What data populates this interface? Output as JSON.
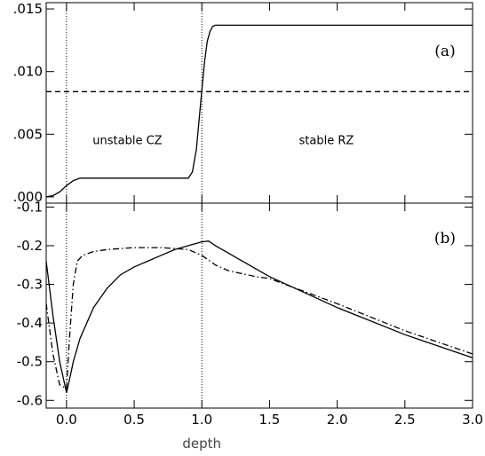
{
  "chart_data": [
    {
      "panel": "(a)",
      "type": "line",
      "xlim": [
        -0.15,
        3.0
      ],
      "ylim": [
        -0.0005,
        0.0155
      ],
      "yticks": [
        0.0,
        0.005,
        0.01,
        0.015
      ],
      "ytick_labels": [
        ".000",
        ".005",
        ".010",
        ".015"
      ],
      "xticks": [
        0.0,
        0.5,
        1.0,
        1.5,
        2.0,
        2.5,
        3.0
      ],
      "annotations": [
        "unstable CZ",
        "stable RZ"
      ],
      "vlines": [
        0.0,
        1.0
      ],
      "series": [
        {
          "style": "solid",
          "x": [
            -0.15,
            -0.1,
            -0.05,
            0.0,
            0.05,
            0.1,
            0.2,
            0.4,
            0.6,
            0.8,
            0.9,
            0.93,
            0.96,
            0.98,
            1.0,
            1.02,
            1.04,
            1.06,
            1.08,
            1.1,
            1.5,
            2.0,
            2.5,
            3.0
          ],
          "y": [
            0.0,
            0.0001,
            0.0004,
            0.0009,
            0.0013,
            0.0015,
            0.0015,
            0.0015,
            0.0015,
            0.0015,
            0.0015,
            0.002,
            0.0038,
            0.0062,
            0.0085,
            0.0108,
            0.0124,
            0.0132,
            0.0136,
            0.0137,
            0.0137,
            0.0137,
            0.0137,
            0.0137
          ]
        },
        {
          "style": "dashed",
          "x": [
            -0.15,
            3.0
          ],
          "y": [
            0.0084,
            0.0084
          ]
        }
      ]
    },
    {
      "panel": "(b)",
      "type": "line",
      "xlim": [
        -0.15,
        3.0
      ],
      "ylim": [
        -0.62,
        -0.09
      ],
      "yticks": [
        -0.6,
        -0.5,
        -0.4,
        -0.3,
        -0.2,
        -0.1
      ],
      "ytick_labels": [
        "-0.6",
        "-0.5",
        "-0.4",
        "-0.3",
        "-0.2",
        "-0.1"
      ],
      "xticks": [
        0.0,
        0.5,
        1.0,
        1.5,
        2.0,
        2.5,
        3.0
      ],
      "xtick_labels": [
        "0.0",
        "0.5",
        "1.0",
        "1.5",
        "2.0",
        "2.5",
        "3.0"
      ],
      "xlabel": "depth",
      "vlines": [
        0.0,
        1.0
      ],
      "series": [
        {
          "style": "solid",
          "x": [
            -0.15,
            -0.1,
            -0.05,
            0.0,
            0.02,
            0.05,
            0.1,
            0.2,
            0.3,
            0.4,
            0.5,
            0.6,
            0.7,
            0.8,
            0.9,
            1.0,
            1.05,
            1.1,
            1.3,
            1.5,
            2.0,
            2.5,
            3.0
          ],
          "y": [
            -0.24,
            -0.38,
            -0.5,
            -0.58,
            -0.55,
            -0.5,
            -0.44,
            -0.36,
            -0.31,
            -0.275,
            -0.255,
            -0.24,
            -0.225,
            -0.21,
            -0.2,
            -0.19,
            -0.188,
            -0.2,
            -0.24,
            -0.28,
            -0.36,
            -0.43,
            -0.49
          ]
        },
        {
          "style": "dash-dot",
          "x": [
            -0.15,
            -0.1,
            -0.05,
            0.0,
            0.02,
            0.05,
            0.08,
            0.12,
            0.2,
            0.3,
            0.5,
            0.7,
            0.9,
            1.0,
            1.1,
            1.2,
            1.4,
            1.5,
            2.0,
            2.5,
            3.0
          ],
          "y": [
            -0.35,
            -0.48,
            -0.56,
            -0.57,
            -0.45,
            -0.3,
            -0.24,
            -0.225,
            -0.215,
            -0.21,
            -0.205,
            -0.205,
            -0.21,
            -0.225,
            -0.25,
            -0.265,
            -0.28,
            -0.285,
            -0.35,
            -0.42,
            -0.48
          ]
        }
      ]
    }
  ]
}
